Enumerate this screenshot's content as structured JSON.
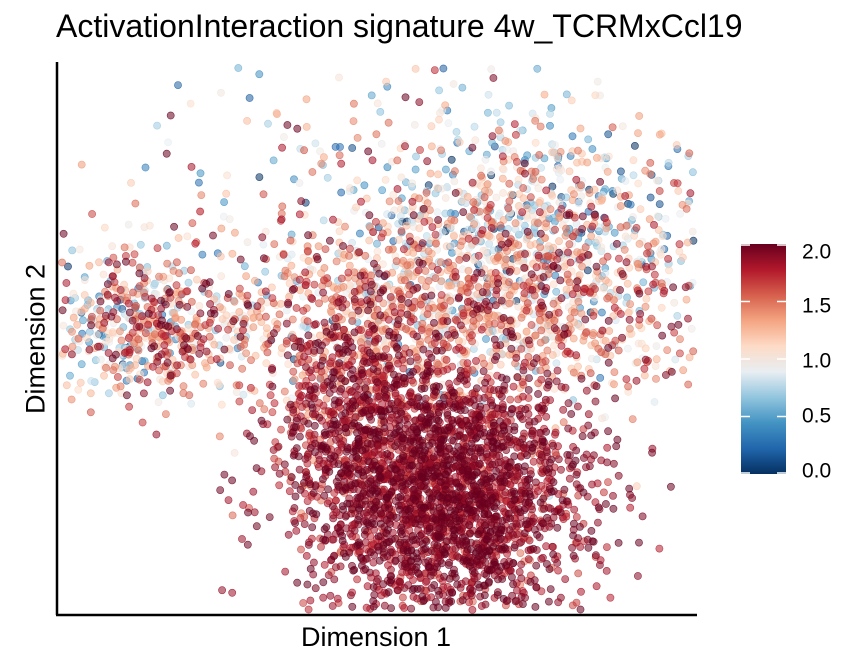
{
  "chart_data": {
    "type": "scatter",
    "title": "ActivationInteraction signature 4w_TCRMxCcl19",
    "xlabel": "Dimension 1",
    "ylabel": "Dimension 2",
    "axis_ticks": false,
    "grid": false,
    "point_opacity": 0.55,
    "colorbar": {
      "range": [
        0.0,
        2.0
      ],
      "tick_labels": [
        "2.0",
        "1.5",
        "1.0",
        "0.5",
        "0.0"
      ],
      "colormap": [
        "#053061",
        "#2166ac",
        "#4393c3",
        "#92c5de",
        "#e8eef2",
        "#fddbc7",
        "#f4a582",
        "#d6604d",
        "#b2182b",
        "#67001f"
      ]
    },
    "clusters": [
      {
        "name": "left-small-cluster",
        "center": [
          -8.5,
          1.0
        ],
        "spread": [
          1.3,
          1.1
        ],
        "n": 320,
        "mean_score": 1.05,
        "score_sd": 0.55
      },
      {
        "name": "left-small-cluster-red-core",
        "center": [
          -7.0,
          0.6
        ],
        "spread": [
          0.9,
          0.8
        ],
        "n": 160,
        "mean_score": 1.55,
        "score_sd": 0.35
      },
      {
        "name": "bridge",
        "center": [
          -4.8,
          0.7
        ],
        "spread": [
          0.9,
          0.5
        ],
        "n": 60,
        "mean_score": 1.15,
        "score_sd": 0.5
      },
      {
        "name": "main-upper-right",
        "center": [
          5.5,
          3.6
        ],
        "spread": [
          3.0,
          1.5
        ],
        "n": 700,
        "mean_score": 1.0,
        "score_sd": 0.5
      },
      {
        "name": "main-middle",
        "center": [
          2.0,
          1.2
        ],
        "spread": [
          4.0,
          1.4
        ],
        "n": 1500,
        "mean_score": 1.35,
        "score_sd": 0.4
      },
      {
        "name": "main-lower-core",
        "center": [
          2.3,
          -3.8
        ],
        "spread": [
          2.3,
          1.7
        ],
        "n": 2600,
        "mean_score": 1.88,
        "score_sd": 0.16
      },
      {
        "name": "main-lower-left-arm",
        "center": [
          -1.0,
          -1.5
        ],
        "spread": [
          1.3,
          1.5
        ],
        "n": 500,
        "mean_score": 1.8,
        "score_sd": 0.22
      },
      {
        "name": "sparse-top",
        "center": [
          1.0,
          5.6
        ],
        "spread": [
          4.0,
          1.3
        ],
        "n": 140,
        "mean_score": 1.05,
        "score_sd": 0.55
      }
    ],
    "xlim": [
      -10.5,
      10.5
    ],
    "ylim": [
      -7.0,
      8.0
    ]
  }
}
